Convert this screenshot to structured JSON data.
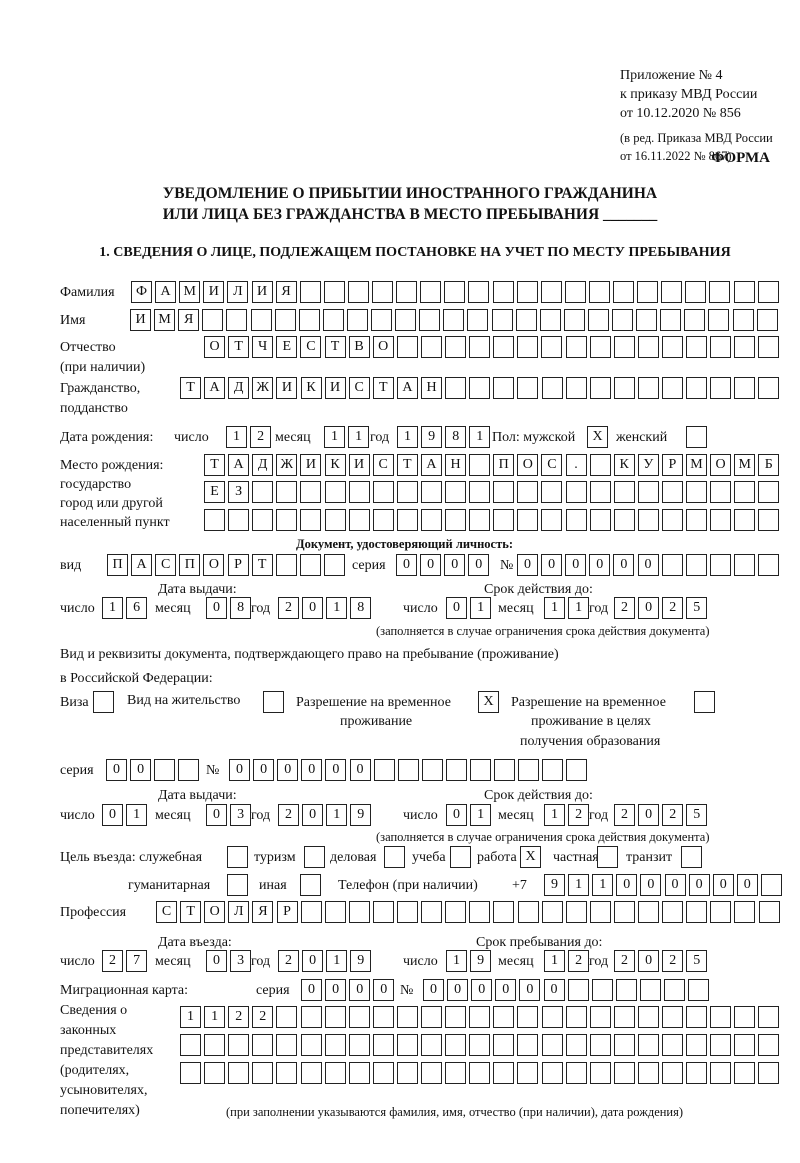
{
  "header": {
    "appendix": [
      "Приложение № 4",
      "к приказу МВД России",
      "от 10.12.2020 № 856"
    ],
    "edition": [
      "(в ред. Приказа МВД России",
      "от 16.11.2022 № 867)"
    ],
    "form_label": "ФОРМА",
    "title": [
      "УВЕДОМЛЕНИЕ О ПРИБЫТИИ ИНОСТРАННОГО ГРАЖДАНИНА",
      "ИЛИ ЛИЦА БЕЗ ГРАЖДАНСТВА В МЕСТО ПРЕБЫВАНИЯ _______"
    ],
    "section1": "1. СВЕДЕНИЯ О ЛИЦЕ, ПОДЛЕЖАЩЕМ ПОСТАНОВКЕ НА УЧЕТ ПО МЕСТУ ПРЕБЫВАНИЯ"
  },
  "labels": {
    "surname": "Фамилия",
    "name": "Имя",
    "patronymic": "Отчество",
    "patronymic_note": "(при наличии)",
    "citizenship": "Гражданство,",
    "citizenship2": "подданство",
    "birth_date": "Дата рождения:",
    "day": "число",
    "month": "месяц",
    "year": "год",
    "sex": "Пол: мужской",
    "female": "женский",
    "birthplace": [
      "Место рождения:",
      "государство",
      "город или другой",
      "населенный пункт"
    ],
    "id_doc": "Документ, удостоверяющий личность:",
    "kind": "вид",
    "series": "серия",
    "number": "№",
    "issue_date": "Дата выдачи:",
    "valid_until": "Срок действия до:",
    "validity_note": "(заполняется в случае ограничения срока действия документа)",
    "permit_doc": [
      "Вид и реквизиты документа, подтверждающего право на пребывание (проживание)",
      "в Российской Федерации:"
    ],
    "visa": "Виза",
    "residence": "Вид на жительство",
    "trp": [
      "Разрешение на временное",
      "проживание"
    ],
    "trp_edu": [
      "Разрешение на временное",
      "проживание в целях",
      "получения образования"
    ],
    "purpose": "Цель въезда: служебная",
    "tourism": "туризм",
    "business": "деловая",
    "study": "учеба",
    "work": "работа",
    "private": "частная",
    "transit": "транзит",
    "humanitarian": "гуманитарная",
    "other": "иная",
    "phone": "Телефон (при наличии)",
    "phone_prefix": "+7",
    "profession": "Профессия",
    "entry_date": "Дата въезда:",
    "stay_until": "Срок пребывания до:",
    "migration_card": "Миграционная карта:",
    "representatives": [
      "Сведения о",
      "законных",
      "представителях",
      "(родителях,",
      "усыновителях,",
      "попечителях)"
    ],
    "representatives_note": "(при заполнении указываются фамилия, имя, отчество (при наличии), дата рождения)"
  },
  "person": {
    "surname": [
      "Ф",
      "А",
      "М",
      "И",
      "Л",
      "И",
      "Я",
      "",
      "",
      "",
      "",
      "",
      "",
      "",
      "",
      "",
      "",
      "",
      "",
      "",
      "",
      "",
      "",
      "",
      "",
      "",
      ""
    ],
    "name": [
      "И",
      "М",
      "Я",
      "",
      "",
      "",
      "",
      "",
      "",
      "",
      "",
      "",
      "",
      "",
      "",
      "",
      "",
      "",
      "",
      "",
      "",
      "",
      "",
      "",
      "",
      "",
      ""
    ],
    "patronymic": [
      "О",
      "Т",
      "Ч",
      "Е",
      "С",
      "Т",
      "В",
      "О",
      "",
      "",
      "",
      "",
      "",
      "",
      "",
      "",
      "",
      "",
      "",
      "",
      "",
      "",
      "",
      ""
    ],
    "citizenship": [
      "Т",
      "А",
      "Д",
      "Ж",
      "И",
      "К",
      "И",
      "С",
      "Т",
      "А",
      "Н",
      "",
      "",
      "",
      "",
      "",
      "",
      "",
      "",
      "",
      "",
      "",
      "",
      "",
      ""
    ],
    "birth_day": [
      "1",
      "2"
    ],
    "birth_month": [
      "1",
      "1"
    ],
    "birth_year": [
      "1",
      "9",
      "8",
      "1"
    ],
    "sex_male": [
      "X"
    ],
    "sex_female": [
      ""
    ],
    "birthplace_1": [
      "Т",
      "А",
      "Д",
      "Ж",
      "И",
      "К",
      "И",
      "С",
      "Т",
      "А",
      "Н",
      "",
      "П",
      "О",
      "С",
      ".",
      "",
      "К",
      "У",
      "Р",
      "М",
      "О",
      "М",
      "Б"
    ],
    "birthplace_2": [
      "Е",
      "З",
      "",
      "",
      "",
      "",
      "",
      "",
      "",
      "",
      "",
      "",
      "",
      "",
      "",
      "",
      "",
      "",
      "",
      "",
      "",
      "",
      "",
      ""
    ],
    "birthplace_3": [
      "",
      "",
      "",
      "",
      "",
      "",
      "",
      "",
      "",
      "",
      "",
      "",
      "",
      "",
      "",
      "",
      "",
      "",
      "",
      "",
      "",
      "",
      "",
      ""
    ]
  },
  "id_document": {
    "kind": [
      "П",
      "А",
      "С",
      "П",
      "О",
      "Р",
      "Т",
      "",
      "",
      ""
    ],
    "series": [
      "0",
      "0",
      "0",
      "0"
    ],
    "number": [
      "0",
      "0",
      "0",
      "0",
      "0",
      "0",
      "",
      "",
      "",
      "",
      ""
    ],
    "issue_day": [
      "1",
      "6"
    ],
    "issue_month": [
      "0",
      "8"
    ],
    "issue_year": [
      "2",
      "0",
      "1",
      "8"
    ],
    "valid_day": [
      "0",
      "1"
    ],
    "valid_month": [
      "1",
      "1"
    ],
    "valid_year": [
      "2",
      "0",
      "2",
      "5"
    ]
  },
  "permit": {
    "visa": [
      ""
    ],
    "residence": [
      ""
    ],
    "trp": [
      "X"
    ],
    "trp_edu": [
      ""
    ],
    "series": [
      "0",
      "0",
      "",
      ""
    ],
    "number": [
      "0",
      "0",
      "0",
      "0",
      "0",
      "0",
      "",
      "",
      "",
      "",
      "",
      "",
      "",
      "",
      ""
    ],
    "issue_day": [
      "0",
      "1"
    ],
    "issue_month": [
      "0",
      "3"
    ],
    "issue_year": [
      "2",
      "0",
      "1",
      "9"
    ],
    "valid_day": [
      "0",
      "1"
    ],
    "valid_month": [
      "1",
      "2"
    ],
    "valid_year": [
      "2",
      "0",
      "2",
      "5"
    ]
  },
  "purpose": {
    "official": [
      ""
    ],
    "tourism": [
      ""
    ],
    "business": [
      ""
    ],
    "study": [
      ""
    ],
    "work": [
      "X"
    ],
    "private": [
      ""
    ],
    "transit": [
      ""
    ],
    "humanitarian": [
      ""
    ],
    "other": [
      ""
    ]
  },
  "phone": [
    "9",
    "1",
    "1",
    "0",
    "0",
    "0",
    "0",
    "0",
    "0",
    ""
  ],
  "profession": [
    "С",
    "Т",
    "О",
    "Л",
    "Я",
    "Р",
    "",
    "",
    "",
    "",
    "",
    "",
    "",
    "",
    "",
    "",
    "",
    "",
    "",
    "",
    "",
    "",
    "",
    "",
    "",
    ""
  ],
  "entry": {
    "day": [
      "2",
      "7"
    ],
    "month": [
      "0",
      "3"
    ],
    "year": [
      "2",
      "0",
      "1",
      "9"
    ],
    "stay_day": [
      "1",
      "9"
    ],
    "stay_month": [
      "1",
      "2"
    ],
    "stay_year": [
      "2",
      "0",
      "2",
      "5"
    ]
  },
  "migration_card": {
    "series": [
      "0",
      "0",
      "0",
      "0"
    ],
    "number": [
      "0",
      "0",
      "0",
      "0",
      "0",
      "0",
      "",
      "",
      "",
      "",
      "",
      ""
    ]
  },
  "representatives": {
    "row1": [
      "1",
      "1",
      "2",
      "2",
      "",
      "",
      "",
      "",
      "",
      "",
      "",
      "",
      "",
      "",
      "",
      "",
      "",
      "",
      "",
      "",
      "",
      "",
      "",
      "",
      ""
    ],
    "row2": [
      "",
      "",
      "",
      "",
      "",
      "",
      "",
      "",
      "",
      "",
      "",
      "",
      "",
      "",
      "",
      "",
      "",
      "",
      "",
      "",
      "",
      "",
      "",
      "",
      ""
    ],
    "row3": [
      "",
      "",
      "",
      "",
      "",
      "",
      "",
      "",
      "",
      "",
      "",
      "",
      "",
      "",
      "",
      "",
      "",
      "",
      "",
      "",
      "",
      "",
      "",
      "",
      ""
    ]
  }
}
